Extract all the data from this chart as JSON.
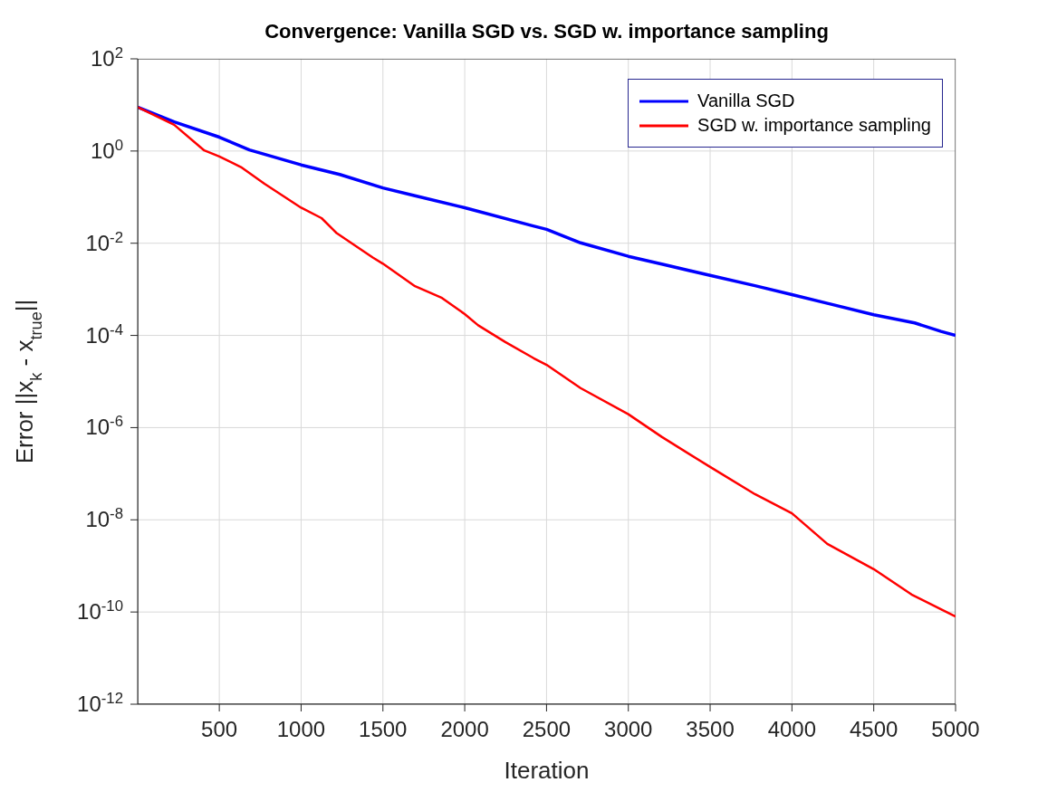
{
  "chart_data": {
    "type": "line",
    "title": "Convergence: Vanilla SGD vs. SGD w. importance sampling",
    "xlabel": "Iteration",
    "ylabel": "Error ||x$_{k}$ - x$_{true}$||",
    "log": "y",
    "grid": true,
    "legend": "top right",
    "line_style": "solid",
    "xlim": [
      1,
      5000
    ],
    "xticks": [
      500,
      1000,
      1500,
      2000,
      2500,
      3000,
      3500,
      4000,
      4500,
      5000
    ],
    "ylim": [
      1e-12,
      100
    ],
    "yticks": [
      {
        "value": 1e-12,
        "label": "10$^{-12}$"
      },
      {
        "value": 1e-10,
        "label": "10$^{-10}$"
      },
      {
        "value": 1e-08,
        "label": "10$^{-8}$"
      },
      {
        "value": 1e-06,
        "label": "10$^{-6}$"
      },
      {
        "value": 0.0001,
        "label": "10$^{-4}$"
      },
      {
        "value": 0.01,
        "label": "10$^{-2}$"
      },
      {
        "value": 1,
        "label": "10$^{0}$"
      },
      {
        "value": 100,
        "label": "10$^{2}$"
      }
    ],
    "series": [
      {
        "name": "Vanilla SGD",
        "color": "#0000ff",
        "x": [
          1,
          224,
          500,
          684,
          1000,
          1236,
          1500,
          1696,
          2000,
          2413,
          2500,
          2708,
          3000,
          3222,
          3500,
          3774,
          4000,
          4234,
          4500,
          4750,
          4911,
          5000
        ],
        "values": [
          9,
          4.3,
          2.0,
          1.06,
          0.5,
          0.31,
          0.158,
          0.107,
          0.059,
          0.024,
          0.02,
          0.0102,
          0.0052,
          0.0034,
          0.002,
          0.0012,
          0.00077,
          0.00048,
          0.00028,
          0.000187,
          0.000122,
          0.0001
        ]
      },
      {
        "name": "SGD w. importance sampling",
        "color": "#ff0000",
        "x": [
          1,
          224,
          408,
          500,
          632,
          776,
          1000,
          1125,
          1217,
          1438,
          1500,
          1696,
          1861,
          2000,
          2082,
          2248,
          2422,
          2500,
          2708,
          3000,
          3204,
          3500,
          3774,
          4000,
          4216,
          4500,
          4731,
          4911,
          5000
        ],
        "values": [
          9,
          3.7,
          1.03,
          0.76,
          0.45,
          0.195,
          0.059,
          0.035,
          0.0166,
          0.0049,
          0.0036,
          0.00117,
          0.00065,
          0.00029,
          0.000166,
          7.2e-05,
          3.2e-05,
          2.3e-05,
          7.2e-06,
          1.95e-06,
          6.3e-07,
          1.4e-07,
          3.6e-08,
          1.38e-08,
          3e-09,
          8.5e-10,
          2.4e-10,
          1.15e-10,
          8e-11
        ]
      }
    ]
  }
}
